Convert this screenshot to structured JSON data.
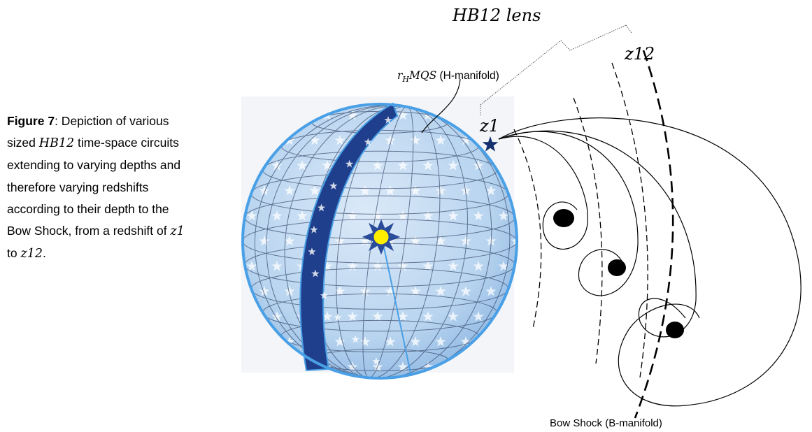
{
  "caption": {
    "figure_label": "Figure 7",
    "text_1": ": Depiction of various sized ",
    "hb12": "HB12",
    "text_2": " time-space circuits extending to varying depths and therefore varying redshifts according to their depth to the Bow Shock, from a redshift of ",
    "z1": "z1",
    "text_3": " to ",
    "z12": "z12",
    "text_4": "."
  },
  "diagram": {
    "lens_label": "HB12 lens",
    "z12_label": "z12",
    "z1_label": "z1",
    "manifold_symbol": "r",
    "manifold_subscript": "H",
    "manifold_math": "MQS",
    "manifold_text": " (H-manifold)",
    "bow_shock_label": "Bow Shock (B-manifold)"
  },
  "colors": {
    "sphere_fill": "#b8d4ef",
    "sphere_edge": "#4aa0e6",
    "band_fill": "#1f3f8c",
    "sun_fill": "#ffee00",
    "sun_rays": "#1f3f8c",
    "star_marker": "#15306e"
  }
}
